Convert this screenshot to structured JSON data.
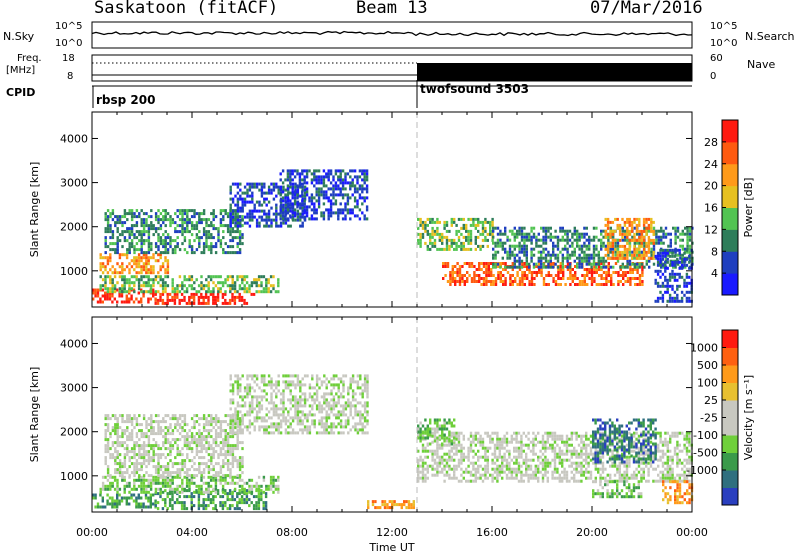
{
  "header": {
    "station": "Saskatoon (fitACF)",
    "beam": "Beam 13",
    "date": "07/Mar/2016"
  },
  "strip": {
    "nsky_label": "N.Sky",
    "nsky_ticks": [
      "10^5",
      "10^0"
    ],
    "nsearch_label": "N.Search",
    "nsearch_ticks": [
      "10^5",
      "10^0"
    ],
    "freq_label_1": "Freq.",
    "freq_label_2": "[MHz]",
    "freq_ticks": [
      "18",
      "8"
    ],
    "nave_label": "Nave",
    "nave_ticks": [
      "60",
      "0"
    ],
    "cpid_label": "CPID",
    "cpid_modes": [
      "rbsp 200",
      "twofsound 3503"
    ],
    "mode_change_hour": 13
  },
  "chart_data": [
    {
      "type": "heatmap",
      "name": "power",
      "xlabel": "",
      "ylabel": "Slant Range [km]",
      "x_range_hours": [
        0,
        24
      ],
      "ylim": [
        180,
        4600
      ],
      "y_ticks": [
        "1000",
        "2000",
        "3000",
        "4000"
      ],
      "colorbar_label": "Power [dB]",
      "colorbar_ticks": [
        "4",
        "8",
        "12",
        "16",
        "20",
        "24",
        "28"
      ],
      "colors": [
        "#1a1aff",
        "#1f3fbf",
        "#2e7d5a",
        "#52c452",
        "#e6c020",
        "#ff9a1a",
        "#ff5a10",
        "#ff1a10"
      ],
      "regions": [
        {
          "x0": 0.0,
          "x1": 2.5,
          "y0": 280,
          "y1": 600,
          "level": 7
        },
        {
          "x0": 2.5,
          "x1": 6.5,
          "y0": 280,
          "y1": 500,
          "level": 7
        },
        {
          "x0": 0.3,
          "x1": 7.5,
          "y0": 500,
          "y1": 900,
          "level": 3
        },
        {
          "x0": 0.3,
          "x1": 3.0,
          "y0": 950,
          "y1": 1400,
          "level": 5
        },
        {
          "x0": 0.5,
          "x1": 6.0,
          "y0": 1400,
          "y1": 2400,
          "level": 2
        },
        {
          "x0": 5.5,
          "x1": 8.5,
          "y0": 2000,
          "y1": 3000,
          "level": 1
        },
        {
          "x0": 7.5,
          "x1": 11.0,
          "y0": 2200,
          "y1": 3300,
          "level": 1
        },
        {
          "x0": 13.0,
          "x1": 16.0,
          "y0": 1500,
          "y1": 2200,
          "level": 3
        },
        {
          "x0": 14.0,
          "x1": 22.0,
          "y0": 700,
          "y1": 1200,
          "level": 6
        },
        {
          "x0": 16.0,
          "x1": 24.0,
          "y0": 1100,
          "y1": 2000,
          "level": 2
        },
        {
          "x0": 20.5,
          "x1": 22.5,
          "y0": 1300,
          "y1": 2200,
          "level": 5
        },
        {
          "x0": 22.5,
          "x1": 24.0,
          "y0": 300,
          "y1": 1500,
          "level": 1
        }
      ]
    },
    {
      "type": "heatmap",
      "name": "velocity",
      "xlabel": "Time UT",
      "ylabel": "Slant Range [km]",
      "x_range_hours": [
        0,
        24
      ],
      "ylim": [
        180,
        4600
      ],
      "x_ticks": [
        "00:00",
        "04:00",
        "08:00",
        "12:00",
        "16:00",
        "20:00",
        "00:00"
      ],
      "y_ticks": [
        "1000",
        "2000",
        "3000",
        "4000"
      ],
      "colorbar_label": "Velocity [m s⁻¹]",
      "colorbar_ticks": [
        "1000",
        "500",
        "100",
        "25",
        "-25",
        "-100",
        "-500",
        "-1000"
      ],
      "colors": [
        "#2a3fbf",
        "#2f6f7f",
        "#3a9a4a",
        "#6fcf3a",
        "#c8c8c0",
        "#c8c8c0",
        "#e8c030",
        "#ff9a1a",
        "#ff6010",
        "#ff1a10"
      ],
      "regions": [
        {
          "x0": 0.0,
          "x1": 2.5,
          "y0": 280,
          "y1": 600,
          "level": 2
        },
        {
          "x0": 2.5,
          "x1": 7.0,
          "y0": 280,
          "y1": 700,
          "level": 2
        },
        {
          "x0": 0.3,
          "x1": 7.5,
          "y0": 600,
          "y1": 1000,
          "level": 3
        },
        {
          "x0": 0.5,
          "x1": 6.0,
          "y0": 1000,
          "y1": 2400,
          "level": 4
        },
        {
          "x0": 5.5,
          "x1": 11.0,
          "y0": 2000,
          "y1": 3300,
          "level": 4
        },
        {
          "x0": 11.0,
          "x1": 13.0,
          "y0": 280,
          "y1": 450,
          "level": 7
        },
        {
          "x0": 13.0,
          "x1": 24.0,
          "y0": 900,
          "y1": 2000,
          "level": 4
        },
        {
          "x0": 13.0,
          "x1": 14.5,
          "y0": 1700,
          "y1": 2300,
          "level": 3
        },
        {
          "x0": 20.0,
          "x1": 22.5,
          "y0": 1300,
          "y1": 2300,
          "level": 1
        },
        {
          "x0": 20.0,
          "x1": 22.0,
          "y0": 500,
          "y1": 900,
          "level": 3
        },
        {
          "x0": 22.8,
          "x1": 24.0,
          "y0": 400,
          "y1": 900,
          "level": 7
        }
      ]
    }
  ]
}
